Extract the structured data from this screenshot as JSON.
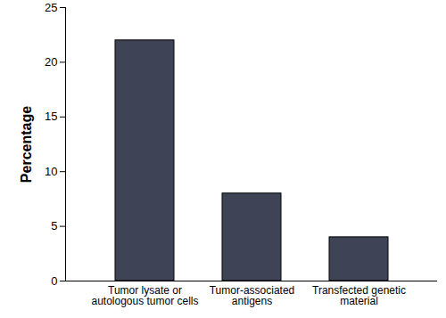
{
  "chart_data": {
    "type": "bar",
    "y_label": "Percentage",
    "categories": [
      "Tumor lysate or\nautologous tumor cells",
      "Tumor-associated\nantigens",
      "Transfected genetic\nmaterial"
    ],
    "values": [
      22,
      8,
      4
    ],
    "color": "#3f4356",
    "ylim": [
      0,
      25
    ],
    "yticks": [
      0,
      5,
      10,
      15,
      20,
      25
    ],
    "grid": false
  }
}
